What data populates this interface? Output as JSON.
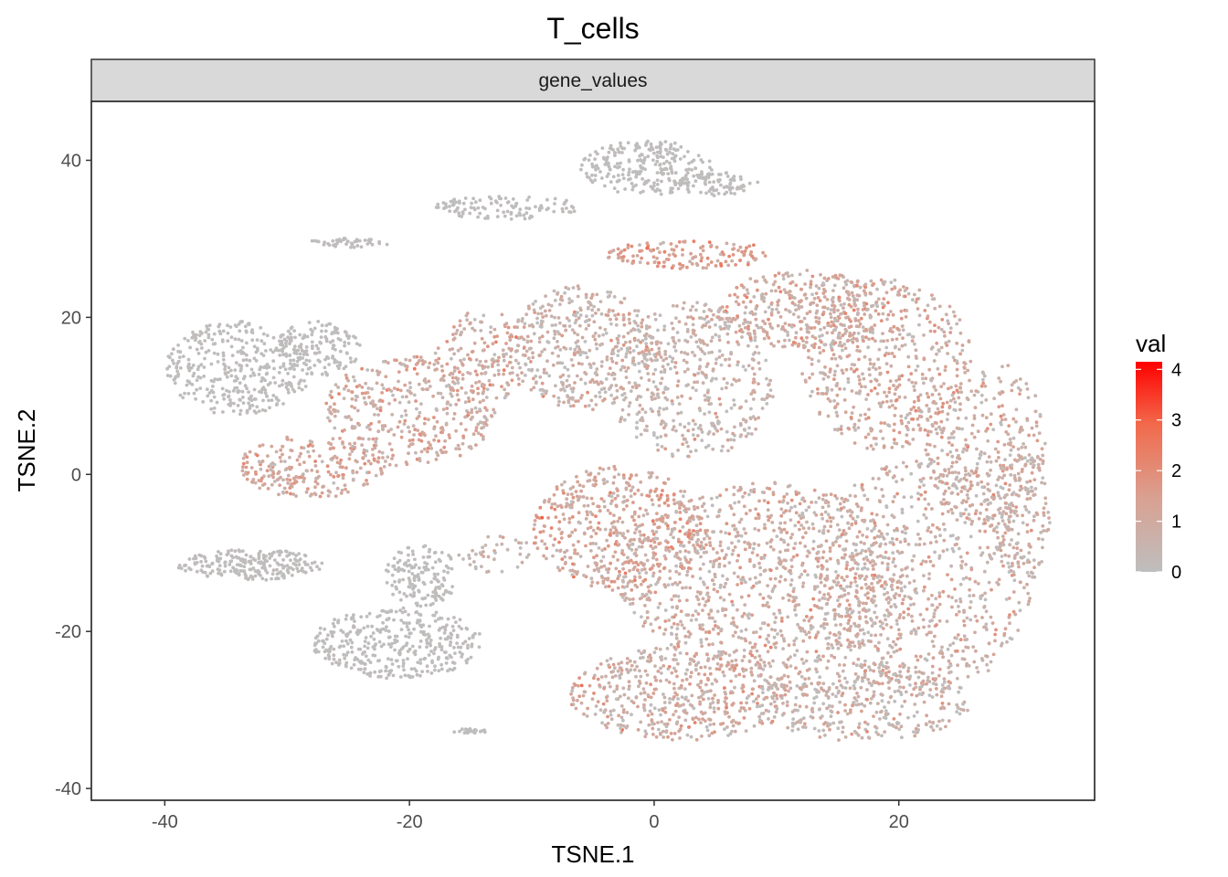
{
  "chart_data": {
    "type": "scatter",
    "title": "T_cells",
    "facet_label": "gene_values",
    "xlabel": "TSNE.1",
    "ylabel": "TSNE.2",
    "xlim": [
      -46,
      36
    ],
    "ylim": [
      -41.5,
      47.5
    ],
    "x_ticks": [
      -40,
      -20,
      0,
      20
    ],
    "y_ticks": [
      -40,
      -20,
      0,
      20,
      40
    ],
    "x_tick_labels": [
      "-40",
      "-20",
      "0",
      "20"
    ],
    "y_tick_labels": [
      "-40",
      "-20",
      "0",
      "20",
      "40"
    ],
    "grid": false,
    "legend": {
      "title": "val",
      "position": "right",
      "ticks": [
        0,
        1,
        2,
        3,
        4
      ],
      "tick_labels": [
        "0",
        "1",
        "2",
        "3",
        "4"
      ],
      "range": [
        0,
        4.15
      ],
      "low_color": "#bebebe",
      "high_color": "#ff0000"
    },
    "clusters": [
      {
        "cx": -0.5,
        "cy": 39,
        "rx": 5.5,
        "ry": 3.5,
        "n": 250,
        "val": 0.05
      },
      {
        "cx": 5,
        "cy": 37,
        "rx": 3.5,
        "ry": 1.5,
        "n": 80,
        "val": 0.05
      },
      {
        "cx": -12,
        "cy": 34,
        "rx": 6,
        "ry": 1.5,
        "n": 110,
        "val": 0.05
      },
      {
        "cx": -25,
        "cy": 29.5,
        "rx": 3.5,
        "ry": 0.6,
        "n": 45,
        "val": 0.05
      },
      {
        "cx": -34,
        "cy": 13.5,
        "rx": 6,
        "ry": 6,
        "n": 360,
        "val": 0.05
      },
      {
        "cx": -27.5,
        "cy": 16,
        "rx": 3.5,
        "ry": 3.5,
        "n": 140,
        "val": 0.05
      },
      {
        "cx": -20,
        "cy": 8,
        "rx": 7,
        "ry": 7,
        "n": 380,
        "val": 0.9
      },
      {
        "cx": -28,
        "cy": 1,
        "rx": 6,
        "ry": 4,
        "n": 230,
        "val": 1.1
      },
      {
        "cx": -14,
        "cy": 15,
        "rx": 4,
        "ry": 6,
        "n": 160,
        "val": 0.9
      },
      {
        "cx": -6,
        "cy": 16,
        "rx": 6,
        "ry": 8,
        "n": 400,
        "val": 0.6
      },
      {
        "cx": 3,
        "cy": 12,
        "rx": 7,
        "ry": 10,
        "n": 480,
        "val": 0.5
      },
      {
        "cx": 12,
        "cy": 21,
        "rx": 7,
        "ry": 5,
        "n": 360,
        "val": 0.9
      },
      {
        "cx": 3,
        "cy": 28,
        "rx": 7,
        "ry": 1.8,
        "n": 140,
        "val": 1.4
      },
      {
        "cx": 19,
        "cy": 14,
        "rx": 7,
        "ry": 11,
        "n": 520,
        "val": 0.9
      },
      {
        "cx": 27,
        "cy": 4,
        "rx": 5,
        "ry": 11,
        "n": 320,
        "val": 0.8
      },
      {
        "cx": -3,
        "cy": -7,
        "rx": 7,
        "ry": 8,
        "n": 480,
        "val": 1.1
      },
      {
        "cx": 9,
        "cy": -13,
        "rx": 12,
        "ry": 12,
        "n": 1000,
        "val": 0.8
      },
      {
        "cx": 22,
        "cy": -13,
        "rx": 9,
        "ry": 15,
        "n": 720,
        "val": 0.7
      },
      {
        "cx": 2,
        "cy": -28,
        "rx": 9,
        "ry": 6,
        "n": 500,
        "val": 0.8
      },
      {
        "cx": 17,
        "cy": -29,
        "rx": 9,
        "ry": 5,
        "n": 380,
        "val": 0.6
      },
      {
        "cx": 30,
        "cy": -5,
        "rx": 2.5,
        "ry": 9,
        "n": 150,
        "val": 0.6
      },
      {
        "cx": -33,
        "cy": -11.5,
        "rx": 6,
        "ry": 2,
        "n": 220,
        "val": 0.05
      },
      {
        "cx": -21,
        "cy": -21.5,
        "rx": 7,
        "ry": 4.5,
        "n": 380,
        "val": 0.05
      },
      {
        "cx": -19,
        "cy": -13,
        "rx": 3,
        "ry": 4,
        "n": 150,
        "val": 0.05
      },
      {
        "cx": -15,
        "cy": -32.7,
        "rx": 1.5,
        "ry": 0.3,
        "n": 25,
        "val": 0.05
      },
      {
        "cx": -13,
        "cy": -10,
        "rx": 3,
        "ry": 2.5,
        "n": 40,
        "val": 0.4
      }
    ]
  }
}
